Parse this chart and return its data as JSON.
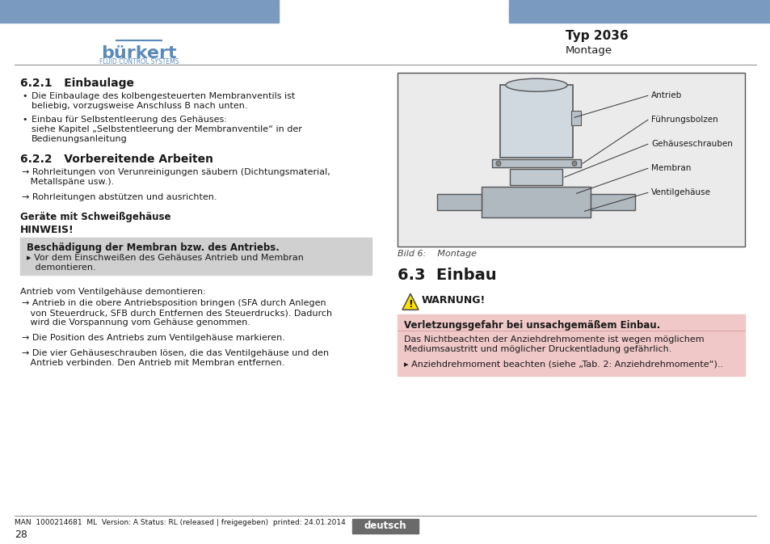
{
  "header_bar_color": "#7a9bbf",
  "header_bar_height": 0.042,
  "logo_color": "#5a8ab8",
  "typ_text": "Typ 2036",
  "montage_text": "Montage",
  "bg_color": "#ffffff",
  "section_621_title": "6.2.1   Einbaulage",
  "section_622_title": "6.2.2   Vorbereitende Arbeiten",
  "section_63_title": "6.3  Einbau",
  "geraete_title": "Geräte mit Schweißgehäuse",
  "hinweis_title": "HINWEIS!",
  "hinweis_box_title": "Beschädigung der Membran bzw. des Antriebs.",
  "hinweis_box_color": "#d0d0d0",
  "warnung_title": "WARNUNG!",
  "warnung_box_color": "#f0c8c8",
  "warnung_box_title": "Verletzungsgefahr bei unsachgemäßem Einbau.",
  "footer_text": "MAN  1000214681  ML  Version: A Status: RL (released | freigegeben)  printed: 24.01.2014",
  "page_number": "28",
  "deutsch_btn_color": "#6a6a6a",
  "deutsch_btn_text": "deutsch",
  "label_antrieb": "Antrieb",
  "label_fuehrungsbolzen": "Führungsbolzen",
  "label_gehaeugeschrauben": "Gehäuseschrauben",
  "label_membran": "Membran",
  "label_ventilgehaeuse": "Ventilgehäuse",
  "bild_caption": "Bild 6:    Montage",
  "diagram_border_color": "#555555",
  "text_color": "#1a1a1a",
  "bullet_texts_621": [
    "Die Einbaulage des kolbengesteuerten Membranventils ist\nbeliebig, vorzugsweise Anschluss B nach unten.",
    "Einbau für Selbstentleerung des Gehäuses:\nsiehe Kapitel „Selbstentleerung der Membranventile“ in der\nBedienungsanleitung"
  ],
  "arrow_texts_622": [
    "→ Rohrleitungen von Verunreinigungen säubern (Dichtungsmaterial,\n   Metallspäne usw.).",
    "→ Rohrleitungen abstützen und ausrichten."
  ],
  "hinweis_body_line1": "▸ Vor dem Einschweißen des Gehäuses Antrieb und Membran",
  "hinweis_body_line2": "   demontieren.",
  "antrieb_text": "Antrieb vom Ventilgehäuse demontieren:",
  "arrow_texts_main": [
    "→ Antrieb in die obere Antriebsposition bringen (SFA durch Anlegen\n   von Steuerdruck, SFB durch Entfernen des Steuerdrucks). Dadurch\n   wird die Vorspannung vom Gehäuse genommen.",
    "→ Die Position des Antriebs zum Ventilgehäuse markieren.",
    "→ Die vier Gehäuseschrauben lösen, die das Ventilgehäuse und den\n   Antrieb verbinden. Den Antrieb mit Membran entfernen."
  ],
  "warnung_body1_line1": "Das Nichtbeachten der Anziehdrehmomente ist wegen möglichem",
  "warnung_body1_line2": "Mediumsaustritt und möglicher Druckentladung gefährlich.",
  "warnung_body2": "▸ Anziehdrehmoment beachten (siehe „Tab. 2: Anziehdrehmomente“).."
}
